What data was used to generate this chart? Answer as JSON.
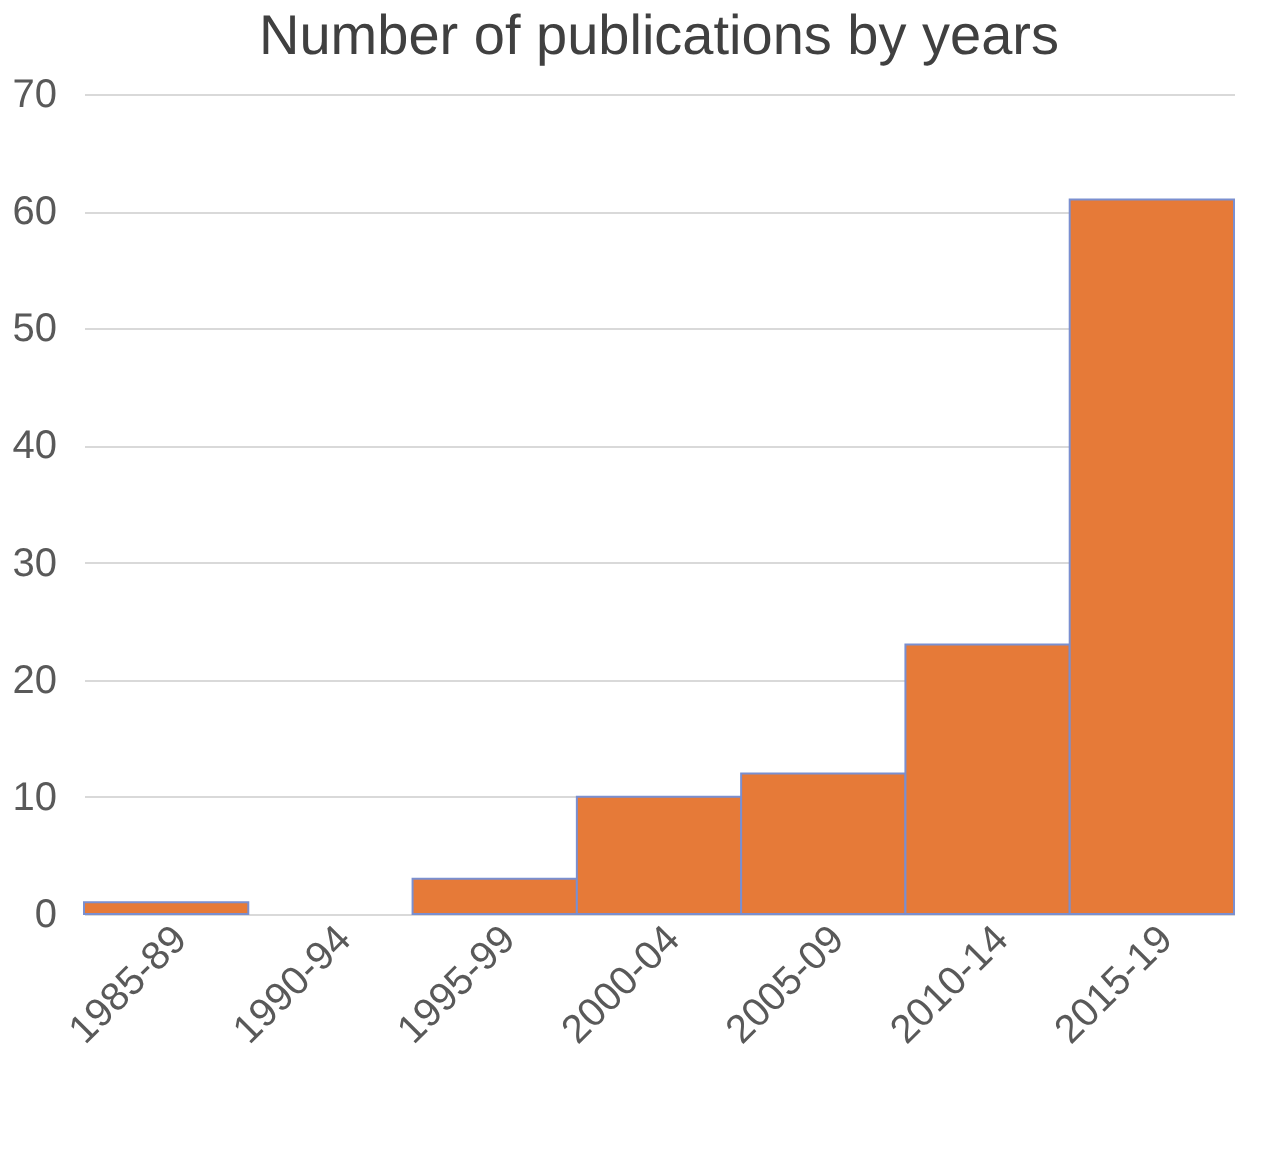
{
  "chart_data": {
    "type": "bar",
    "title": "Number of publications by years",
    "categories": [
      "1985-89",
      "1990-94",
      "1995-99",
      "2000-04",
      "2005-09",
      "2010-14",
      "2015-19"
    ],
    "values": [
      1,
      0,
      3,
      10,
      12,
      23,
      61
    ],
    "color": "#e67a38",
    "ylim": [
      0,
      70
    ],
    "yticks": [
      0,
      10,
      20,
      30,
      40,
      50,
      60,
      70
    ],
    "grid": "y"
  }
}
